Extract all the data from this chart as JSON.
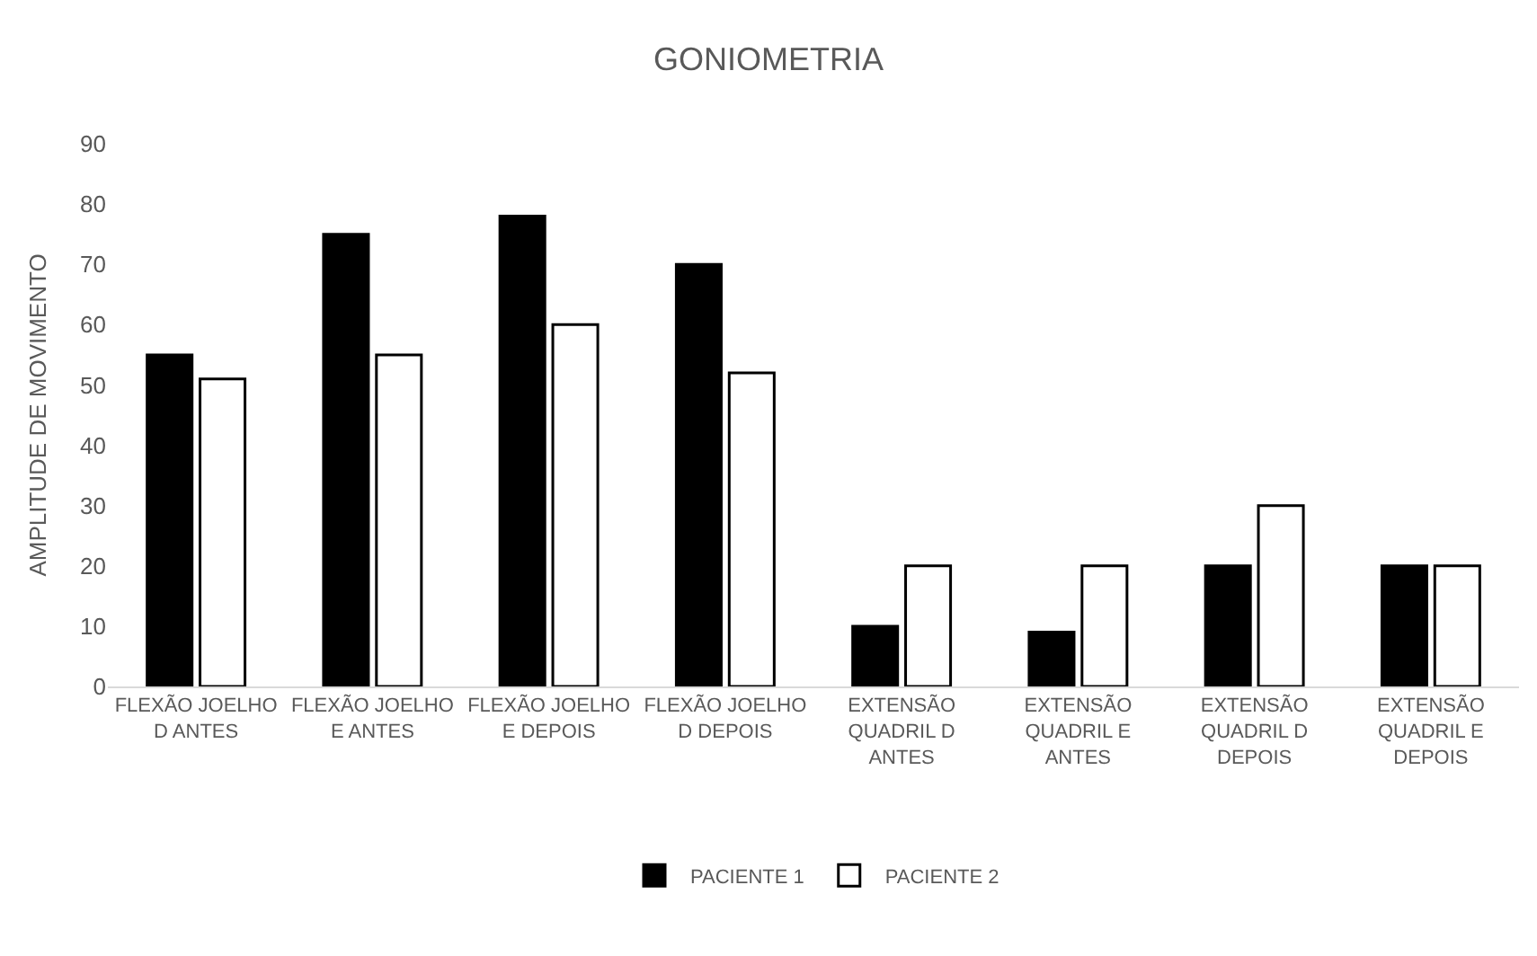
{
  "chart_data": {
    "type": "bar",
    "title": "GONIOMETRIA",
    "ylabel": "AMPLITUDE DE MOVIMENTO",
    "categories": [
      "FLEXÃO JOELHO D ANTES",
      "FLEXÃO JOELHO E ANTES",
      "FLEXÃO JOELHO E DEPOIS",
      "FLEXÃO JOELHO D DEPOIS",
      "EXTENSÃO QUADRIL D ANTES",
      "EXTENSÃO QUADRIL E ANTES",
      "EXTENSÃO QUADRIL D DEPOIS",
      "EXTENSÃO QUADRIL E DEPOIS"
    ],
    "series": [
      {
        "name": "PACIENTE 1",
        "color": "#000000",
        "values": [
          55,
          75,
          78,
          70,
          10,
          9,
          20,
          20
        ]
      },
      {
        "name": "PACIENTE 2",
        "color": "#ffffff",
        "values": [
          51,
          55,
          60,
          52,
          20,
          20,
          30,
          20
        ]
      }
    ],
    "ylim": [
      0,
      90
    ],
    "yticks": [
      0,
      10,
      20,
      30,
      40,
      50,
      60,
      70,
      80,
      90
    ],
    "grid": false,
    "legend": "bottom"
  }
}
